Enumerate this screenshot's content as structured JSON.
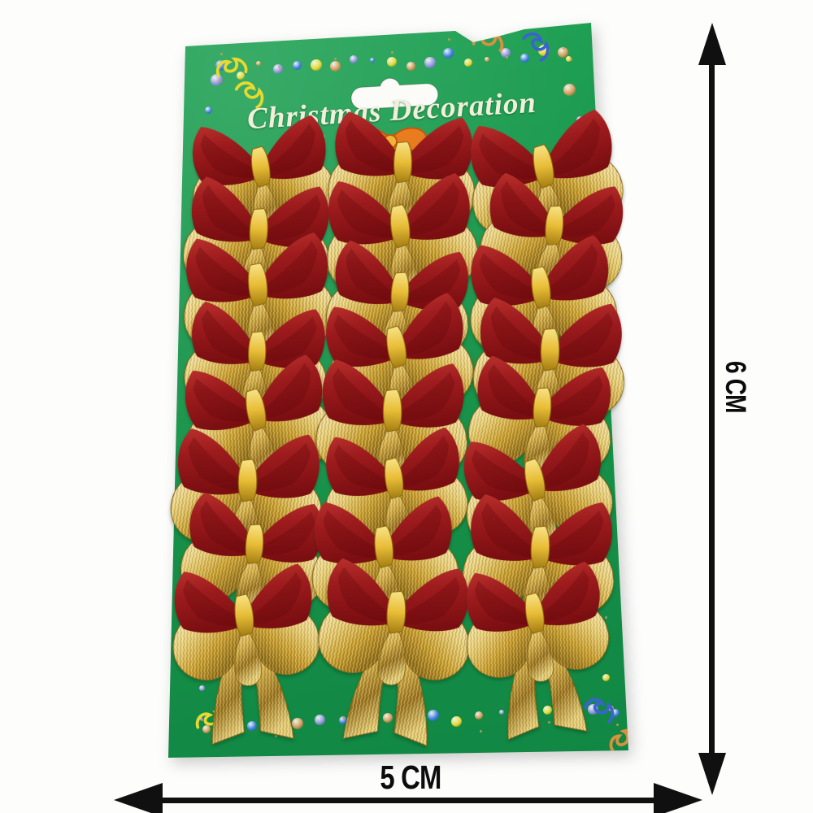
{
  "card": {
    "title": "Christmas Decoration",
    "title_color": "#f1efda",
    "green": "#179349",
    "bow_grid": {
      "rows": 8,
      "cols": 3,
      "count": 24
    },
    "bow_colors": {
      "red": "#9d1b1d",
      "red_dark": "#7a0e11",
      "gold": "#c59a28",
      "gold_light": "#f8f0c8",
      "gold_dark": "#8d6a12",
      "knot_gold": "#e8bd36"
    },
    "border_dot_colors": [
      "#3c7ce2",
      "#e8d82e",
      "#d89a58",
      "#9093dc"
    ],
    "streamer_colors": {
      "yellow": "#e9d92f",
      "blue": "#3b63cf",
      "orange": "#d9913f"
    },
    "printed_bow_color": "#e87c1e"
  },
  "measurements": {
    "height_label": "6 CM",
    "width_label": "5 CM",
    "arrow_color": "#101010"
  }
}
